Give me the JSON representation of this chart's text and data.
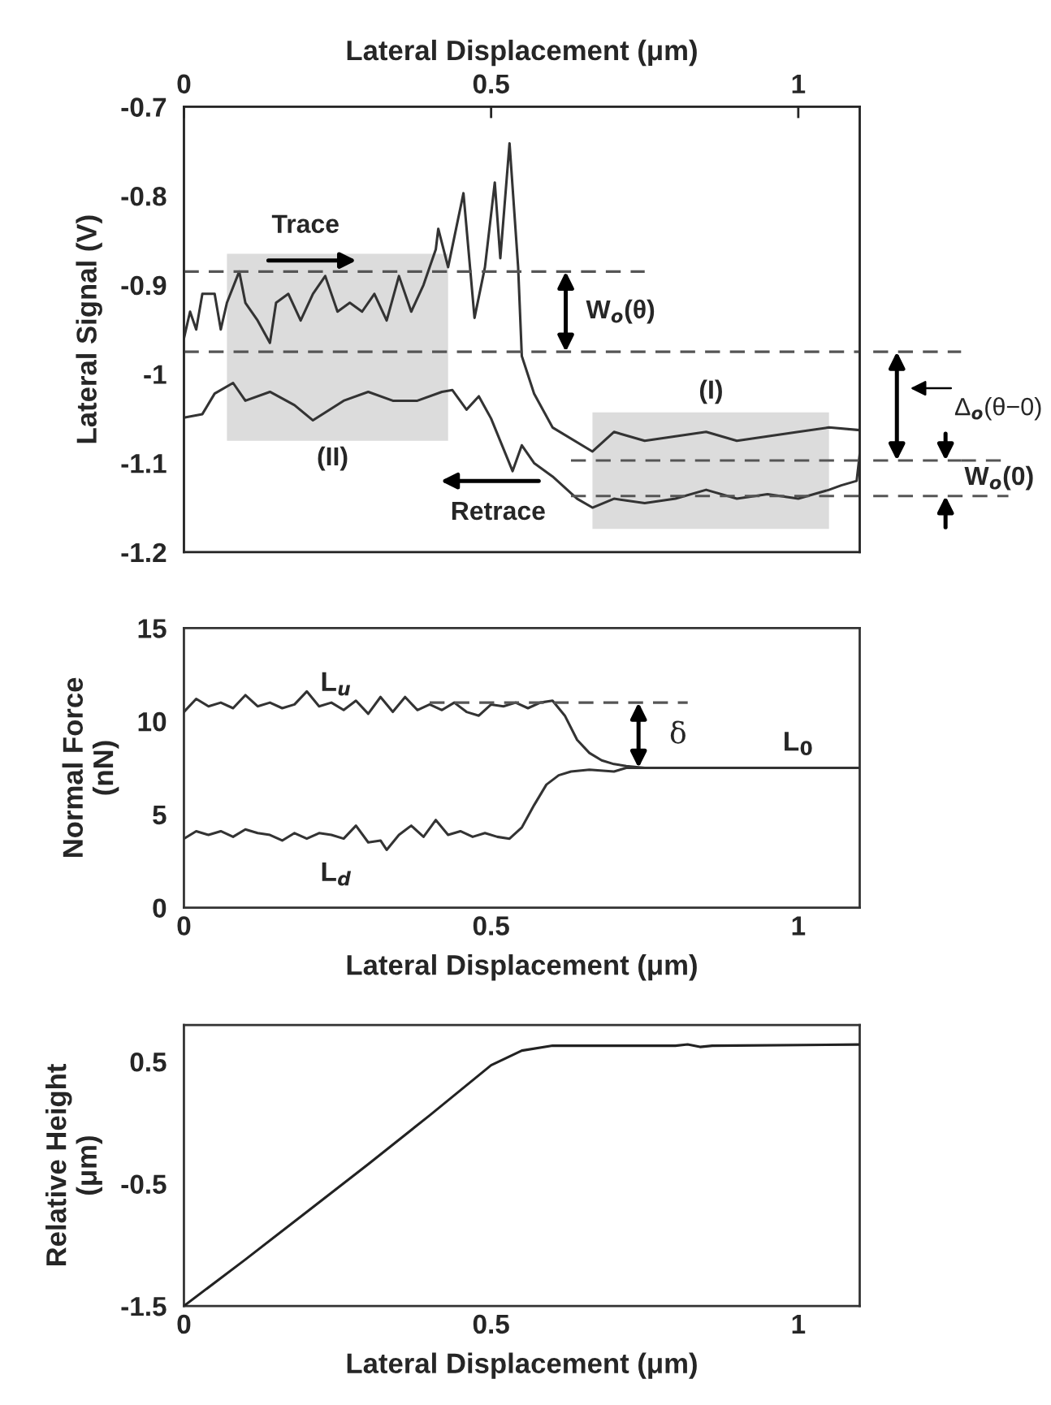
{
  "chart_data": [
    {
      "type": "line",
      "ylabel": "Lateral Signal (V)",
      "x2label": "Lateral Displacement (μm)",
      "x2lim": [
        0,
        1.1
      ],
      "x2ticks": [
        0,
        0.5,
        1
      ],
      "xlim": [
        0,
        1.1
      ],
      "tick_labels": "y",
      "ylim": [
        -1.2,
        -0.7
      ],
      "yticks": [
        -1.2,
        -1.1,
        -1,
        -0.9,
        -0.8,
        -0.7
      ],
      "grid": false,
      "legend": false,
      "series": [
        {
          "type": "area",
          "color": "#dcdcdc",
          "x": [
            0.07,
            0.07,
            0.43,
            0.43
          ],
          "values": [
            -1.075,
            -0.865,
            -0.865,
            -1.075
          ]
        },
        {
          "type": "area",
          "color": "#dcdcdc",
          "x": [
            0.665,
            0.665,
            1.05,
            1.05
          ],
          "values": [
            -1.174,
            -1.043,
            -1.043,
            -1.174
          ]
        },
        {
          "color": "#333333",
          "x": [
            0,
            0.01,
            0.02,
            0.03,
            0.05,
            0.06,
            0.07,
            0.09,
            0.1,
            0.12,
            0.14,
            0.15,
            0.17,
            0.19,
            0.21,
            0.23,
            0.25,
            0.27,
            0.29,
            0.31,
            0.33,
            0.35,
            0.37,
            0.39,
            0.41,
            0.414,
            0.43,
            0.455,
            0.473,
            0.49,
            0.506,
            0.515,
            0.53,
            0.544,
            0.55,
            0.57,
            0.6,
            0.665,
            0.7,
            0.75,
            0.8,
            0.85,
            0.9,
            0.95,
            1,
            1.05,
            1.1
          ],
          "values": [
            -0.96,
            -0.93,
            -0.95,
            -0.91,
            -0.91,
            -0.95,
            -0.92,
            -0.885,
            -0.92,
            -0.94,
            -0.965,
            -0.92,
            -0.91,
            -0.94,
            -0.91,
            -0.89,
            -0.93,
            -0.92,
            -0.93,
            -0.91,
            -0.94,
            -0.89,
            -0.93,
            -0.9,
            -0.86,
            -0.837,
            -0.88,
            -0.797,
            -0.937,
            -0.88,
            -0.785,
            -0.87,
            -0.741,
            -0.88,
            -0.98,
            -1.022,
            -1.06,
            -1.087,
            -1.065,
            -1.075,
            -1.07,
            -1.065,
            -1.075,
            -1.07,
            -1.065,
            -1.06,
            -1.063
          ],
          "line_style": "solid"
        },
        {
          "color": "#333333",
          "x": [
            0,
            0.03,
            0.05,
            0.08,
            0.1,
            0.14,
            0.18,
            0.21,
            0.26,
            0.3,
            0.34,
            0.38,
            0.42,
            0.437,
            0.46,
            0.48,
            0.5,
            0.535,
            0.55,
            0.57,
            0.6,
            0.64,
            0.665,
            0.7,
            0.75,
            0.8,
            0.85,
            0.9,
            0.95,
            1,
            1.05,
            1.07,
            1.095,
            1.1
          ],
          "values": [
            -1.049,
            -1.045,
            -1.022,
            -1.01,
            -1.03,
            -1.02,
            -1.035,
            -1.052,
            -1.03,
            -1.02,
            -1.03,
            -1.03,
            -1.02,
            -1.018,
            -1.04,
            -1.025,
            -1.05,
            -1.109,
            -1.08,
            -1.1,
            -1.115,
            -1.14,
            -1.15,
            -1.14,
            -1.145,
            -1.14,
            -1.13,
            -1.14,
            -1.135,
            -1.14,
            -1.13,
            -1.125,
            -1.12,
            -1.09
          ],
          "line_style": "solid"
        },
        {
          "color": "#555555",
          "x": [
            0,
            0.75
          ],
          "values": [
            -0.885,
            -0.885
          ],
          "line_style": "dashed"
        },
        {
          "color": "#555555",
          "x": [
            0,
            1.1
          ],
          "values": [
            -0.975,
            -0.975
          ],
          "line_style": "dashed"
        },
        {
          "color": "#555555",
          "x": [
            0.63,
            1.1
          ],
          "values": [
            -1.097,
            -1.097
          ],
          "line_style": "dashed"
        },
        {
          "color": "#555555",
          "x": [
            0.63,
            1.1
          ],
          "values": [
            -1.137,
            -1.137
          ],
          "line_style": "dashed"
        }
      ],
      "annotations": [
        "Trace",
        "Retrace",
        "(I)",
        "(II)",
        "W$_{o}$(θ)",
        "Δ$_{o}$(θ−0)",
        "W$_{o}$(0)"
      ]
    },
    {
      "type": "line",
      "ylabel": "Normal Force\n(nN)",
      "xlabel": "Lateral Displacement (μm)",
      "xlim": [
        0,
        1.1
      ],
      "xticks": [
        0,
        0.5,
        1
      ],
      "ylim": [
        0,
        15
      ],
      "yticks": [
        0,
        5,
        10,
        15
      ],
      "grid": false,
      "legend": false,
      "series": [
        {
          "color": "#333333",
          "x": [
            0,
            0.02,
            0.04,
            0.06,
            0.08,
            0.1,
            0.12,
            0.14,
            0.16,
            0.18,
            0.2,
            0.22,
            0.24,
            0.26,
            0.28,
            0.3,
            0.32,
            0.34,
            0.36,
            0.38,
            0.4,
            0.42,
            0.44,
            0.46,
            0.48,
            0.5,
            0.52,
            0.54,
            0.56,
            0.58,
            0.6,
            0.62,
            0.64,
            0.66,
            0.68,
            0.7,
            0.72,
            0.75,
            0.8,
            0.9,
            1,
            1.1
          ],
          "values": [
            10.5,
            11.2,
            10.8,
            11.0,
            10.7,
            11.4,
            10.8,
            11.0,
            10.7,
            10.9,
            11.6,
            10.8,
            11.0,
            10.6,
            11.1,
            10.4,
            11.3,
            10.5,
            11.3,
            10.6,
            10.9,
            10.6,
            11.0,
            10.5,
            10.3,
            10.9,
            10.8,
            11.0,
            10.7,
            11.0,
            11.1,
            10.3,
            9.0,
            8.3,
            7.9,
            7.7,
            7.6,
            7.5,
            7.5,
            7.5,
            7.5,
            7.5
          ],
          "line_style": "solid"
        },
        {
          "color": "#333333",
          "x": [
            0,
            0.02,
            0.04,
            0.06,
            0.08,
            0.1,
            0.12,
            0.14,
            0.16,
            0.18,
            0.2,
            0.22,
            0.24,
            0.26,
            0.28,
            0.3,
            0.32,
            0.33,
            0.35,
            0.37,
            0.39,
            0.41,
            0.43,
            0.45,
            0.47,
            0.49,
            0.51,
            0.53,
            0.55,
            0.57,
            0.59,
            0.61,
            0.63,
            0.66,
            0.7,
            0.72,
            0.8,
            0.9,
            1,
            1.1
          ],
          "values": [
            3.7,
            4.1,
            3.9,
            4.1,
            3.8,
            4.2,
            4.0,
            3.9,
            3.6,
            4.0,
            3.7,
            4.0,
            3.9,
            3.7,
            4.4,
            3.5,
            3.6,
            3.1,
            3.9,
            4.4,
            3.8,
            4.7,
            3.9,
            4.1,
            3.8,
            4.0,
            3.8,
            3.7,
            4.3,
            5.5,
            6.6,
            7.1,
            7.3,
            7.4,
            7.3,
            7.5,
            7.5,
            7.5,
            7.5,
            7.5
          ],
          "line_style": "solid"
        },
        {
          "color": "#555555",
          "x": [
            0.4,
            0.82
          ],
          "values": [
            11,
            11
          ],
          "line_style": "dashed"
        }
      ],
      "annotations": [
        "L$_{u}$",
        "L$_{d}$",
        {
          "text": "δ",
          "x": 0.74,
          "y": 11
        },
        {
          "text": "L$_{0}$",
          "x": 1.0,
          "y": 7.5
        }
      ]
    },
    {
      "type": "line",
      "ylabel": "Relative Height\n(μm)",
      "xlabel": "Lateral Displacement (μm)",
      "xlim": [
        0,
        1.1
      ],
      "xticks": [
        0,
        0.5,
        1
      ],
      "ylim": [
        -1.5,
        0.8
      ],
      "yticks": [
        -1.5,
        -0.5,
        0.5
      ],
      "grid": false,
      "legend": false,
      "series": [
        {
          "color": "#222222",
          "x": [
            0,
            0.1,
            0.2,
            0.3,
            0.4,
            0.5,
            0.55,
            0.6,
            0.8,
            0.82,
            0.84,
            0.86,
            1.1
          ],
          "values": [
            -1.5,
            -1.12,
            -0.73,
            -0.34,
            0.06,
            0.47,
            0.59,
            0.63,
            0.63,
            0.64,
            0.62,
            0.63,
            0.64
          ],
          "line_style": "solid"
        }
      ]
    }
  ]
}
